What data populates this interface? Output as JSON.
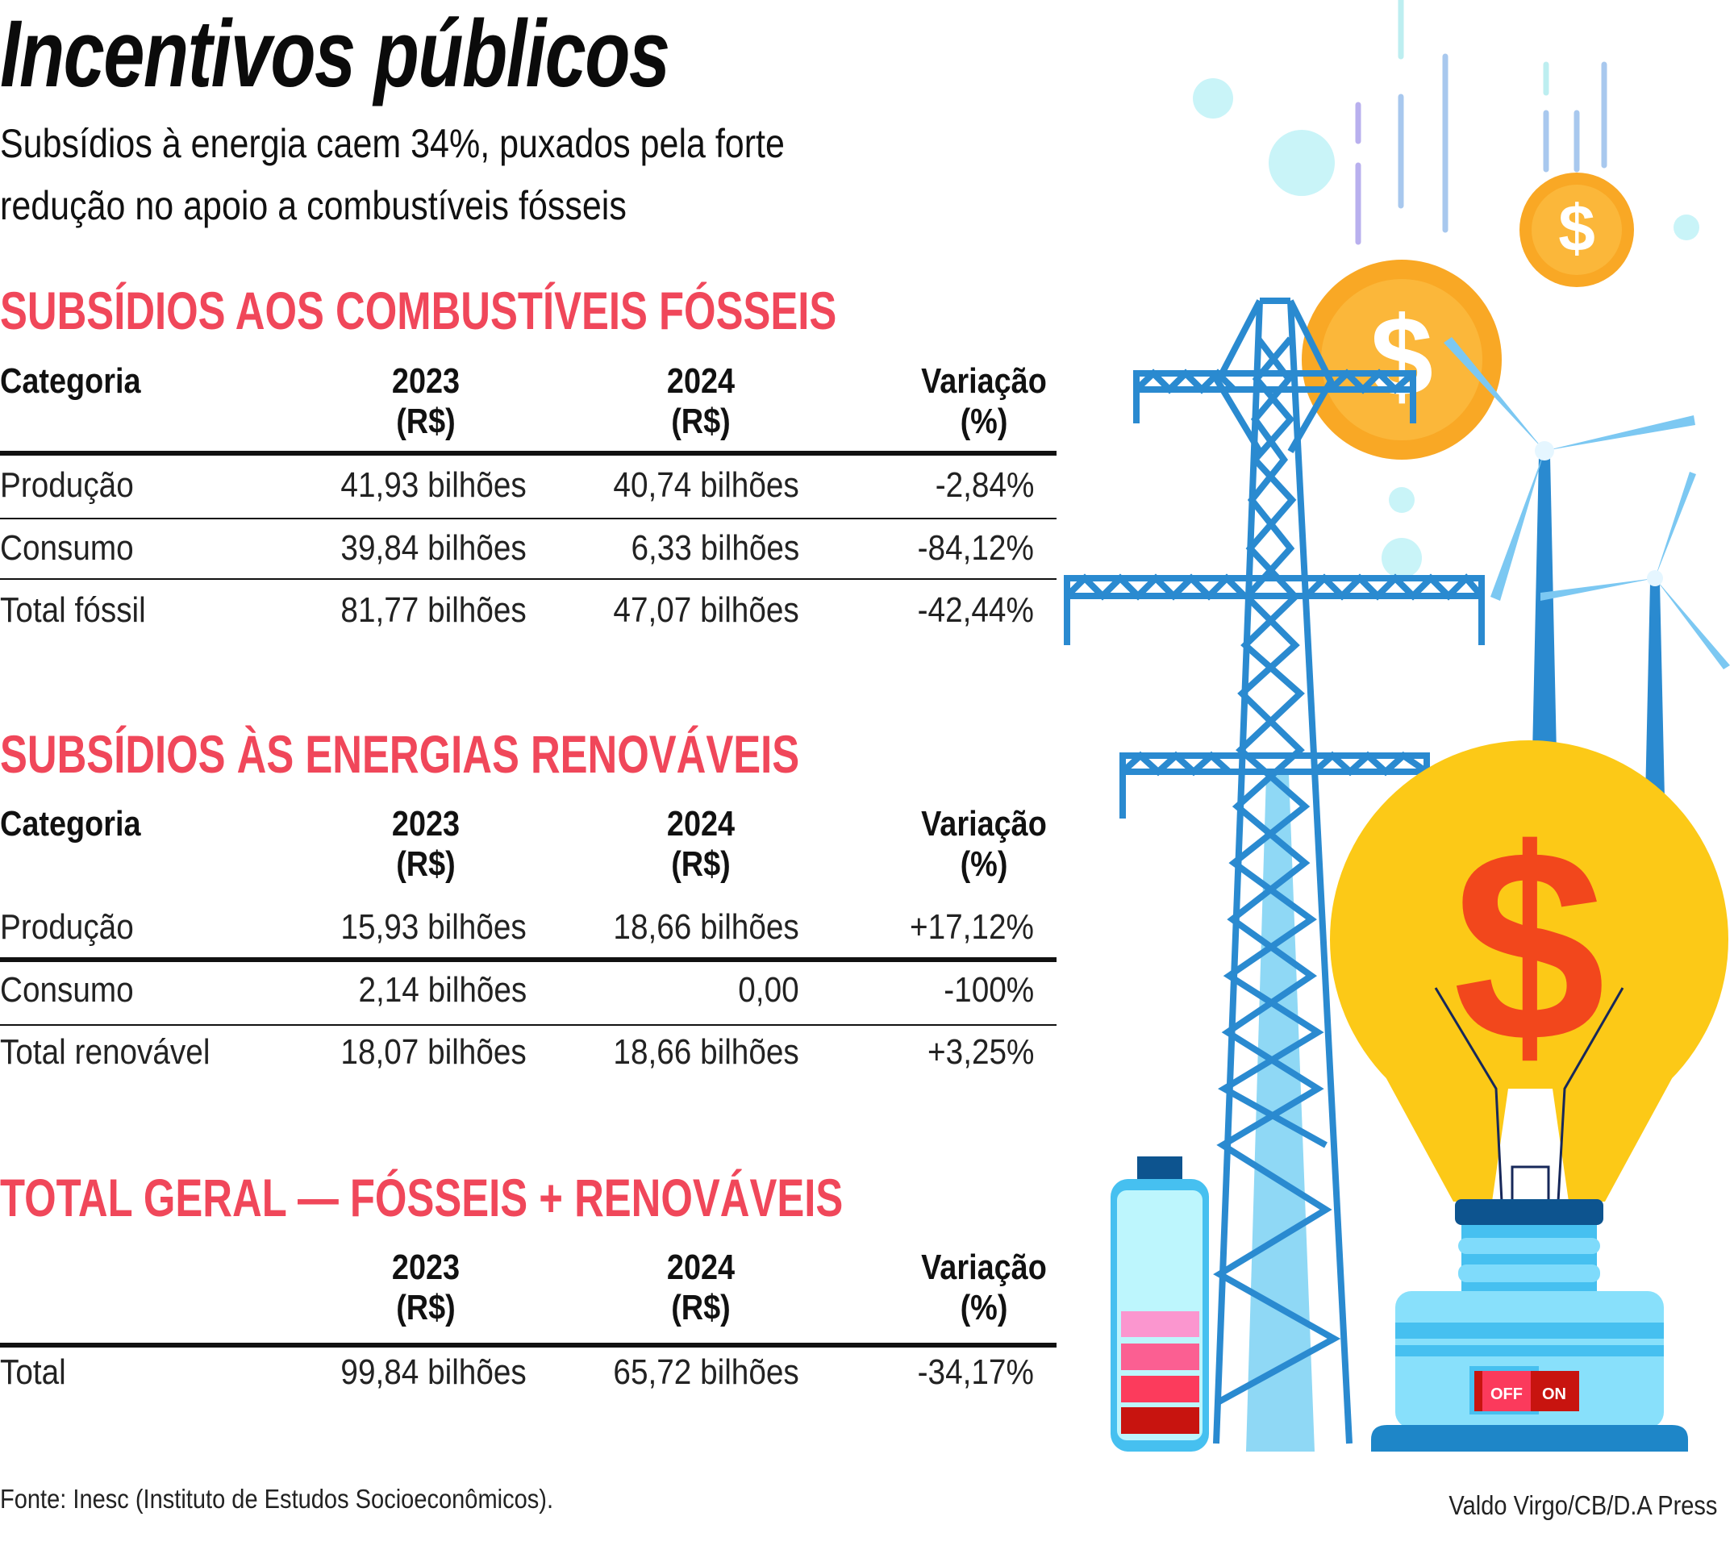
{
  "title": "Incentivos públicos",
  "subtitle": [
    "Subsídios à energia caem 34%, puxados pela forte",
    "redução no apoio a combustíveis fósseis"
  ],
  "headers": {
    "categoria": "Categoria",
    "y2023": "2023",
    "y2024": "2024",
    "rs": "(R$)",
    "variacao": "Variação",
    "pct": "(%)"
  },
  "fosseis": {
    "heading": "SUBSÍDIOS AOS COMBUSTÍVEIS FÓSSEIS",
    "rows": [
      {
        "categoria": "Produção",
        "v2023": "41,93 bilhões",
        "v2024": "40,74 bilhões",
        "variacao": "-2,84%"
      },
      {
        "categoria": "Consumo",
        "v2023": "39,84 bilhões",
        "v2024": "6,33 bilhões",
        "variacao": "-84,12%"
      },
      {
        "categoria": "Total fóssil",
        "v2023": "81,77 bilhões",
        "v2024": "47,07 bilhões",
        "variacao": "-42,44%"
      }
    ]
  },
  "renovaveis": {
    "heading": "SUBSÍDIOS ÀS ENERGIAS RENOVÁVEIS",
    "rows": [
      {
        "categoria": "Produção",
        "v2023": "15,93 bilhões",
        "v2024": "18,66 bilhões",
        "variacao": "+17,12%"
      },
      {
        "categoria": "Consumo",
        "v2023": "2,14 bilhões",
        "v2024": "0,00",
        "variacao": "-100%"
      },
      {
        "categoria": "Total renovável",
        "v2023": "18,07 bilhões",
        "v2024": "18,66 bilhões",
        "variacao": "+3,25%"
      }
    ]
  },
  "total": {
    "heading": "TOTAL GERAL — FÓSSEIS + RENOVÁVEIS",
    "rows": [
      {
        "categoria": "Total",
        "v2023": "99,84 bilhões",
        "v2024": "65,72 bilhões",
        "variacao": "-34,17%"
      }
    ]
  },
  "source": "Fonte: Inesc (Instituto de Estudos Socioeconômicos).",
  "credit": "Valdo Virgo/CB/D.A Press",
  "illustration": {
    "switch_off": "OFF",
    "switch_on": "ON",
    "dollar": "$"
  },
  "colors": {
    "heading": "#f0475a",
    "tower": "#2a8ad0",
    "bulb": "#fcc917",
    "dollar": "#f2471c",
    "coin": "#f9a825"
  }
}
